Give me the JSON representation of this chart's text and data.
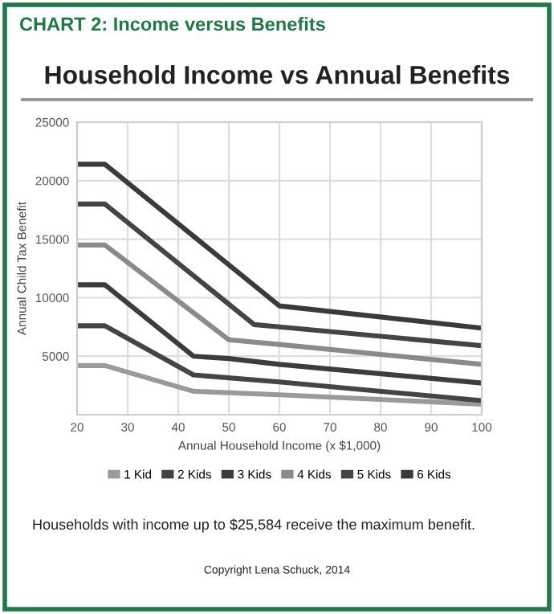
{
  "chart_data": {
    "type": "line",
    "title": "CHART 2: Income versus Benefits",
    "subtitle": "Household Income vs Annual Benefits",
    "xlabel": "Annual Household Income (x $1,000)",
    "ylabel": "Annual Child Tax Benefit",
    "xlim": [
      20,
      100
    ],
    "xticks": [
      20,
      30,
      40,
      50,
      60,
      70,
      80,
      90,
      100
    ],
    "ylim": [
      0,
      25000
    ],
    "yticks": [
      5000,
      10000,
      15000,
      20000,
      25000
    ],
    "grid": true,
    "legend": "bottom",
    "marker": "none",
    "line_style": "solid",
    "series": [
      {
        "name": "1 Kid",
        "color": "#9a9a9a",
        "x": [
          20,
          25.5,
          43,
          60,
          100
        ],
        "values": [
          4200,
          4200,
          2000,
          1700,
          900
        ]
      },
      {
        "name": "2 Kids",
        "color": "#444444",
        "x": [
          20,
          25.5,
          43,
          60,
          100
        ],
        "values": [
          7600,
          7600,
          3400,
          2800,
          1200
        ]
      },
      {
        "name": "3 Kids",
        "color": "#3c3c3c",
        "x": [
          20,
          25.5,
          43,
          50,
          60,
          100
        ],
        "values": [
          11100,
          11100,
          5000,
          4800,
          4300,
          2700
        ]
      },
      {
        "name": "4 Kids",
        "color": "#8a8a8a",
        "x": [
          20,
          25.5,
          50,
          60,
          100
        ],
        "values": [
          14500,
          14500,
          6400,
          6000,
          4300
        ]
      },
      {
        "name": "5 Kids",
        "color": "#444444",
        "x": [
          20,
          25.5,
          55,
          60,
          100
        ],
        "values": [
          18000,
          18000,
          7700,
          7500,
          5900
        ]
      },
      {
        "name": "6 Kids",
        "color": "#3a3a3a",
        "x": [
          20,
          25.5,
          60,
          100
        ],
        "values": [
          21400,
          21400,
          9300,
          7400
        ]
      }
    ],
    "annotations": [
      "Households with income up to $25,584 receive the maximum benefit.",
      "Copyright Lena Schuck, 2014"
    ]
  }
}
